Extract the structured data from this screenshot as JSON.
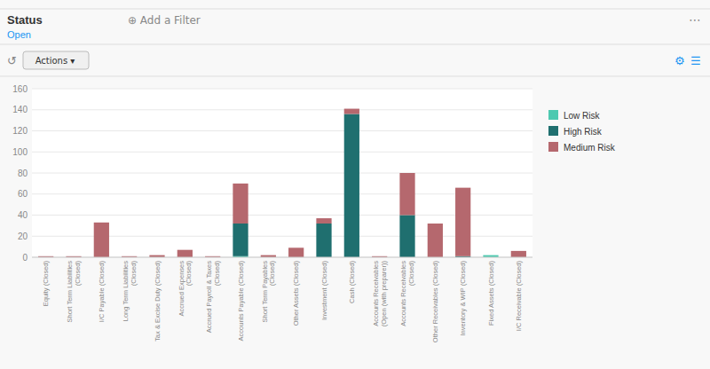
{
  "chart_data": {
    "type": "bar",
    "title": "Status",
    "subtitle": "Open",
    "annotations": [
      "⊕ Add a Filter",
      "⋯",
      "↺",
      "Actions ▾",
      "⚙",
      "☰"
    ],
    "categories": [
      "Equity (Closed)",
      "Short Term Liabilities\n(Closed)",
      "I/C Payable (Closed)",
      "Long Term Liabilities\n(Closed)",
      "Tax & Excise Duty (Closed)",
      "Accrued Expenses\n(Closed)",
      "Accrued Payroll & Taxes\n(Closed)",
      "Accounts Payable (Closed)",
      "Short Term Payables\n(Closed)",
      "Other Assets (Closed)",
      "Investment (Closed)",
      "Cash (Closed)",
      "Accounts Receivables\n(Open (with preparer))",
      "Accounts Receivables\n(Closed)",
      "Other Receivables (Closed)",
      "Inventory & WIP (Closed)",
      "Fixed Assets (Closed)",
      "I/C Receivable (Closed)"
    ],
    "series": [
      {
        "name": "Low Risk",
        "color": "#4ec9b0",
        "values": [
          0,
          0,
          0,
          0,
          0,
          0,
          0,
          1,
          0,
          0,
          0,
          0,
          0,
          0,
          0,
          0,
          2,
          0
        ]
      },
      {
        "name": "High Risk",
        "color": "#1f6f6f",
        "values": [
          0,
          0,
          0,
          0,
          0,
          0,
          0,
          31,
          0,
          0,
          32,
          136,
          0,
          40,
          0,
          1,
          0,
          0
        ]
      },
      {
        "name": "Medium Risk",
        "color": "#b5686e",
        "values": [
          1,
          1,
          33,
          1,
          2,
          7,
          1,
          38,
          2,
          9,
          5,
          5,
          1,
          40,
          32,
          65,
          0,
          6
        ]
      }
    ],
    "stacked": true,
    "ylim": [
      0,
      160
    ],
    "yticks": [
      0,
      20,
      40,
      60,
      80,
      100,
      120,
      140,
      160
    ],
    "grid": true,
    "legend": "right"
  }
}
